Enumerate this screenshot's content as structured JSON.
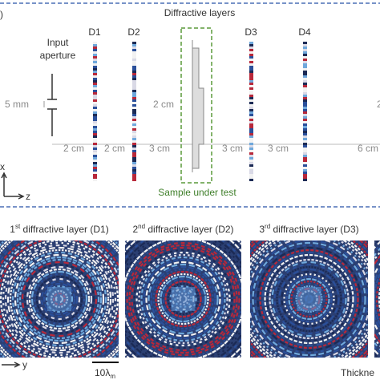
{
  "panel_a": {
    "panel_label": ")",
    "title": "Diffractive layers",
    "layers": [
      "D1",
      "D2",
      "D3",
      "D4"
    ],
    "aperture_label": [
      "Input",
      "aperture"
    ],
    "aperture_size": "5 mm",
    "sample_offset": "2 cm",
    "distances": [
      "2 cm",
      "2 cm",
      "3 cm",
      "3 cm",
      "3 cm",
      "6 cm"
    ],
    "right_clipped": "2",
    "sample_label": "Sample under test",
    "axis_x": "x",
    "axis_z": "z"
  },
  "panel_b": {
    "titles": [
      {
        "number": "1",
        "sup": "st",
        "rest": " diffractive layer (D1)"
      },
      {
        "number": "2",
        "sup": "nd",
        "rest": " diffractive layer (D2)"
      },
      {
        "number": "3",
        "sup": "rd",
        "rest": " diffractive layer (D3)"
      }
    ],
    "axis_y": "y",
    "scale_bar": {
      "main": "10λ",
      "sub": "m"
    },
    "thickness_label": "Thickne"
  }
}
